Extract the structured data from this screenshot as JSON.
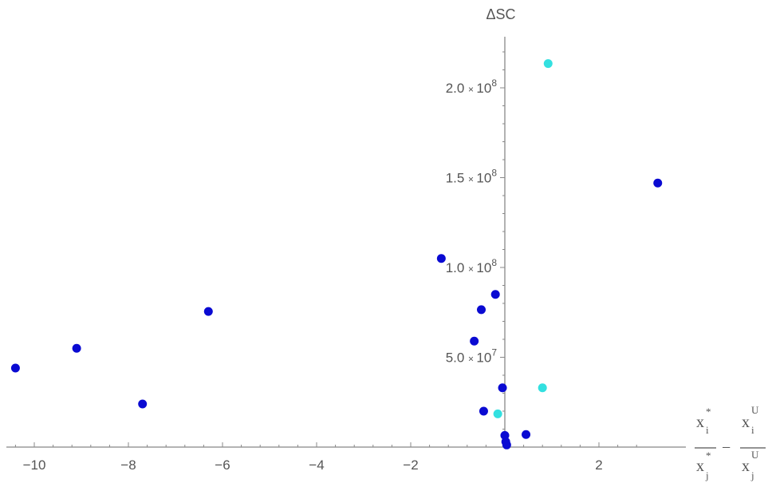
{
  "chart_data": {
    "type": "scatter",
    "title": "",
    "ylabel": "ΔSC",
    "xlabel": {
      "num_left": "x",
      "num_left_sub": "i",
      "num_left_sup": "*",
      "den_left": "x",
      "den_left_sub": "j",
      "den_left_sup": "*",
      "minus": "−",
      "num_right": "x",
      "num_right_sub": "i",
      "num_right_sup": "U",
      "den_right": "x",
      "den_right_sub": "j",
      "den_right_sup": "U"
    },
    "xlim": [
      -10.5,
      3.4
    ],
    "ylim": [
      0,
      228000000
    ],
    "x_ticks": [
      -10,
      -8,
      -6,
      -4,
      -2,
      2
    ],
    "x_tick_labels": [
      "−10",
      "−8",
      "−6",
      "−4",
      "−2",
      "2"
    ],
    "y_ticks": [
      {
        "value": 50000000,
        "mantissa": "5.0",
        "times": "×",
        "base": "10",
        "exp": "7"
      },
      {
        "value": 100000000,
        "mantissa": "1.0",
        "times": "×",
        "base": "10",
        "exp": "8"
      },
      {
        "value": 150000000,
        "mantissa": "1.5",
        "times": "×",
        "base": "10",
        "exp": "8"
      },
      {
        "value": 200000000,
        "mantissa": "2.0",
        "times": "×",
        "base": "10",
        "exp": "8"
      }
    ],
    "colors": {
      "series_a": "#0a0ad2",
      "series_b": "#33e0e0",
      "axis": "#888888",
      "text": "#555555"
    },
    "series": [
      {
        "color": "#0a0ad2",
        "points": [
          {
            "x": -10.4,
            "y": 44000000
          },
          {
            "x": -9.1,
            "y": 55000000
          },
          {
            "x": -7.7,
            "y": 24000000
          },
          {
            "x": -6.3,
            "y": 75500000
          },
          {
            "x": -1.35,
            "y": 105000000
          },
          {
            "x": -0.65,
            "y": 59000000
          },
          {
            "x": -0.5,
            "y": 76500000
          },
          {
            "x": -0.45,
            "y": 20000000
          },
          {
            "x": -0.2,
            "y": 85000000
          },
          {
            "x": -0.05,
            "y": 33000000
          },
          {
            "x": 0.0,
            "y": 6500000
          },
          {
            "x": 0.02,
            "y": 3000000
          },
          {
            "x": 0.04,
            "y": 1200000
          },
          {
            "x": 0.45,
            "y": 7000000
          },
          {
            "x": 3.25,
            "y": 147000000
          }
        ]
      },
      {
        "color": "#33e0e0",
        "points": [
          {
            "x": -0.15,
            "y": 18500000
          },
          {
            "x": 0.8,
            "y": 33000000
          },
          {
            "x": 0.92,
            "y": 213500000
          }
        ]
      }
    ]
  }
}
